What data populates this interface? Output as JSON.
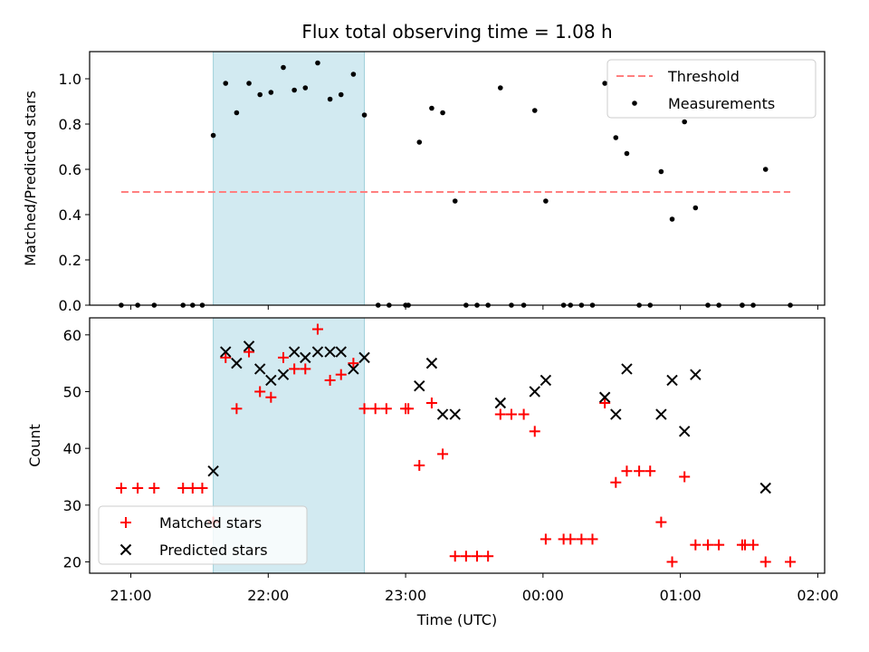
{
  "title": "Flux total observing time = 1.08 h",
  "chart_data": [
    {
      "type": "scatter",
      "ylabel": "Matched/Predicted stars",
      "xlim": [
        -0.3,
        5.05
      ],
      "ylim": [
        0,
        1.12
      ],
      "yticks": [
        0.0,
        0.2,
        0.4,
        0.6,
        0.8,
        1.0
      ],
      "ytick_labels": [
        "0.0",
        "0.2",
        "0.4",
        "0.6",
        "0.8",
        "1.0"
      ],
      "shaded_span": [
        0.6,
        1.7
      ],
      "threshold": {
        "name": "Threshold",
        "y": 0.5,
        "x": [
          -0.07,
          4.8
        ],
        "color": "#ff7f7f",
        "style": "dashed"
      },
      "series": [
        {
          "name": "Measurements",
          "marker": "dot",
          "color": "#000000",
          "points": [
            [
              -0.07,
              0
            ],
            [
              0.05,
              0
            ],
            [
              0.17,
              0
            ],
            [
              0.38,
              0
            ],
            [
              0.45,
              0
            ],
            [
              0.52,
              0
            ],
            [
              0.6,
              0.75
            ],
            [
              0.69,
              0.98
            ],
            [
              0.77,
              0.85
            ],
            [
              0.86,
              0.98
            ],
            [
              0.94,
              0.93
            ],
            [
              1.02,
              0.94
            ],
            [
              1.11,
              1.05
            ],
            [
              1.19,
              0.95
            ],
            [
              1.27,
              0.96
            ],
            [
              1.36,
              1.07
            ],
            [
              1.45,
              0.91
            ],
            [
              1.53,
              0.93
            ],
            [
              1.62,
              1.02
            ],
            [
              1.7,
              0.84
            ],
            [
              1.8,
              0
            ],
            [
              1.88,
              0
            ],
            [
              2.0,
              0
            ],
            [
              2.02,
              0
            ],
            [
              2.1,
              0.72
            ],
            [
              2.19,
              0.87
            ],
            [
              2.27,
              0.85
            ],
            [
              2.36,
              0.46
            ],
            [
              2.44,
              0
            ],
            [
              2.52,
              0
            ],
            [
              2.6,
              0
            ],
            [
              2.69,
              0.96
            ],
            [
              2.77,
              0
            ],
            [
              2.86,
              0
            ],
            [
              2.94,
              0.86
            ],
            [
              3.02,
              0.46
            ],
            [
              3.15,
              0
            ],
            [
              3.2,
              0
            ],
            [
              3.28,
              0
            ],
            [
              3.36,
              0
            ],
            [
              3.45,
              0.98
            ],
            [
              3.53,
              0.74
            ],
            [
              3.61,
              0.67
            ],
            [
              3.7,
              0
            ],
            [
              3.78,
              0
            ],
            [
              3.86,
              0.59
            ],
            [
              3.94,
              0.38
            ],
            [
              4.03,
              0.81
            ],
            [
              4.11,
              0.43
            ],
            [
              4.2,
              0
            ],
            [
              4.28,
              0
            ],
            [
              4.45,
              0
            ],
            [
              4.53,
              0
            ],
            [
              4.45,
              0
            ],
            [
              4.62,
              0.6
            ],
            [
              4.8,
              0
            ]
          ]
        }
      ],
      "legend": {
        "position": "top-right",
        "entries": [
          "Threshold",
          "Measurements"
        ]
      }
    },
    {
      "type": "scatter",
      "ylabel": "Count",
      "xlabel": "Time (UTC)",
      "xlim": [
        -0.3,
        5.05
      ],
      "ylim": [
        18,
        63
      ],
      "yticks": [
        20,
        30,
        40,
        50,
        60
      ],
      "ytick_labels": [
        "20",
        "30",
        "40",
        "50",
        "60"
      ],
      "xticks": [
        0,
        1,
        2,
        3,
        4,
        5
      ],
      "xtick_labels": [
        "21:00",
        "22:00",
        "23:00",
        "00:00",
        "01:00",
        "02:00"
      ],
      "shaded_span": [
        0.6,
        1.7
      ],
      "series": [
        {
          "name": "Matched stars",
          "marker": "plus",
          "color": "#ff0000",
          "points": [
            [
              -0.07,
              33
            ],
            [
              0.05,
              33
            ],
            [
              0.17,
              33
            ],
            [
              0.38,
              33
            ],
            [
              0.45,
              33
            ],
            [
              0.52,
              33
            ],
            [
              0.6,
              27
            ],
            [
              0.69,
              56
            ],
            [
              0.77,
              47
            ],
            [
              0.86,
              57
            ],
            [
              0.94,
              50
            ],
            [
              1.02,
              49
            ],
            [
              1.11,
              56
            ],
            [
              1.19,
              54
            ],
            [
              1.27,
              54
            ],
            [
              1.36,
              61
            ],
            [
              1.45,
              52
            ],
            [
              1.53,
              53
            ],
            [
              1.62,
              55
            ],
            [
              1.7,
              47
            ],
            [
              1.78,
              47
            ],
            [
              1.86,
              47
            ],
            [
              2.0,
              47
            ],
            [
              2.02,
              47
            ],
            [
              2.1,
              37
            ],
            [
              2.19,
              48
            ],
            [
              2.27,
              39
            ],
            [
              2.36,
              21
            ],
            [
              2.44,
              21
            ],
            [
              2.52,
              21
            ],
            [
              2.6,
              21
            ],
            [
              2.69,
              46
            ],
            [
              2.77,
              46
            ],
            [
              2.86,
              46
            ],
            [
              2.94,
              43
            ],
            [
              3.02,
              24
            ],
            [
              3.15,
              24
            ],
            [
              3.2,
              24
            ],
            [
              3.28,
              24
            ],
            [
              3.36,
              24
            ],
            [
              3.45,
              48
            ],
            [
              3.53,
              34
            ],
            [
              3.61,
              36
            ],
            [
              3.7,
              36
            ],
            [
              3.78,
              36
            ],
            [
              3.86,
              27
            ],
            [
              3.94,
              20
            ],
            [
              4.03,
              35
            ],
            [
              4.11,
              23
            ],
            [
              4.2,
              23
            ],
            [
              4.28,
              23
            ],
            [
              4.45,
              23
            ],
            [
              4.53,
              23
            ],
            [
              4.47,
              23
            ],
            [
              4.62,
              20
            ],
            [
              4.8,
              20
            ]
          ]
        },
        {
          "name": "Predicted stars",
          "marker": "x",
          "color": "#000000",
          "points": [
            [
              0.6,
              36
            ],
            [
              0.69,
              57
            ],
            [
              0.77,
              55
            ],
            [
              0.86,
              58
            ],
            [
              0.94,
              54
            ],
            [
              1.02,
              52
            ],
            [
              1.11,
              53
            ],
            [
              1.19,
              57
            ],
            [
              1.27,
              56
            ],
            [
              1.36,
              57
            ],
            [
              1.45,
              57
            ],
            [
              1.53,
              57
            ],
            [
              1.62,
              54
            ],
            [
              1.7,
              56
            ],
            [
              2.1,
              51
            ],
            [
              2.19,
              55
            ],
            [
              2.27,
              46
            ],
            [
              2.36,
              46
            ],
            [
              2.69,
              48
            ],
            [
              2.94,
              50
            ],
            [
              3.02,
              52
            ],
            [
              3.45,
              49
            ],
            [
              3.53,
              46
            ],
            [
              3.61,
              54
            ],
            [
              3.86,
              46
            ],
            [
              3.94,
              52
            ],
            [
              4.03,
              43
            ],
            [
              4.11,
              53
            ],
            [
              4.62,
              33
            ]
          ]
        }
      ],
      "legend": {
        "position": "bottom-left",
        "entries": [
          "Matched stars",
          "Predicted stars"
        ]
      }
    }
  ]
}
